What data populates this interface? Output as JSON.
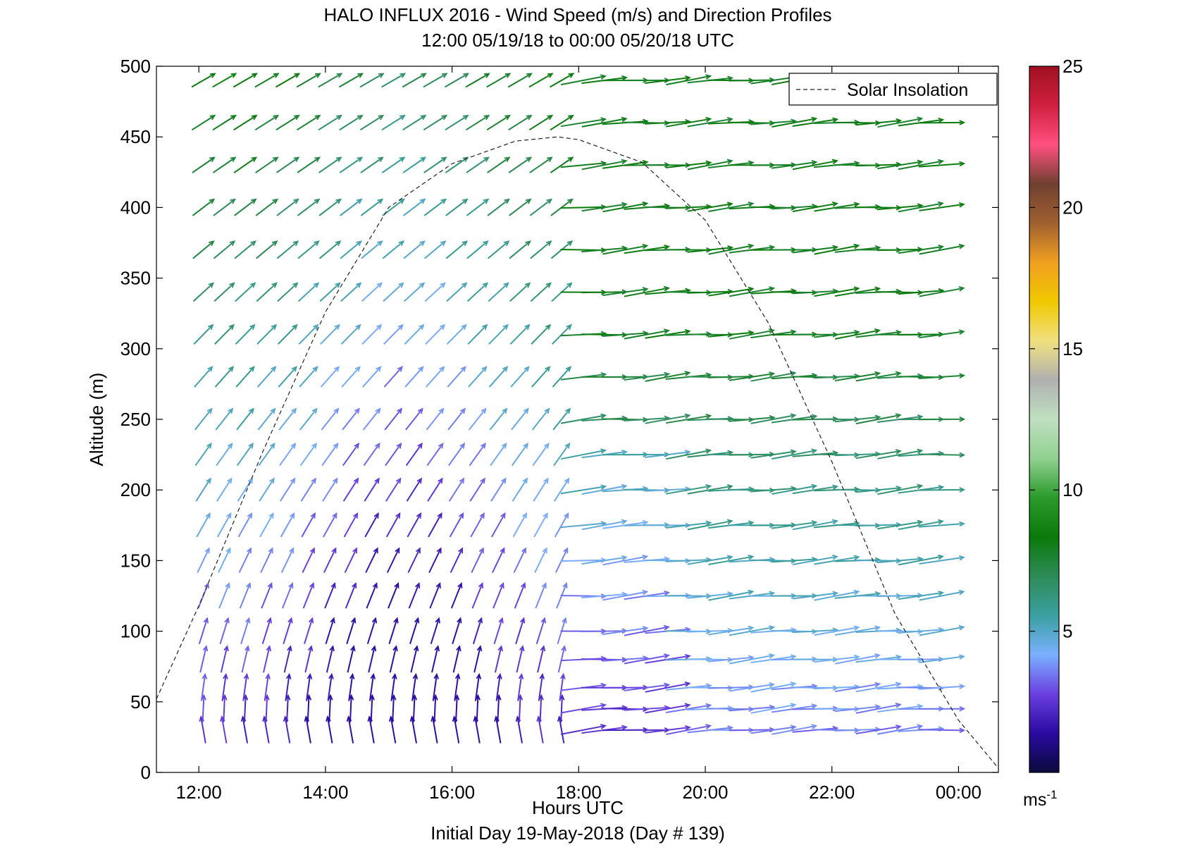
{
  "chart_data": {
    "type": "quiver",
    "title": "HALO INFLUX 2016 - Wind Speed (m/s) and Direction Profiles",
    "subtitle": "12:00 05/19/18 to 00:00 05/20/18  UTC",
    "xlabel": "Hours UTC",
    "xlabel2": "Initial Day 19-May-2018 (Day # 139)",
    "ylabel": "Altitude (m)",
    "x_ticks": [
      "12:00",
      "14:00",
      "16:00",
      "18:00",
      "20:00",
      "22:00",
      "00:00"
    ],
    "x_tick_hours": [
      12,
      14,
      16,
      18,
      20,
      22,
      24
    ],
    "xlim_hours": [
      11.33,
      24.63
    ],
    "ylim": [
      0,
      500
    ],
    "y_ticks": [
      0,
      50,
      100,
      150,
      200,
      250,
      300,
      350,
      400,
      450,
      500
    ],
    "grid": false,
    "legend": {
      "position": "top-right",
      "entries": [
        "Solar Insolation"
      ]
    },
    "colorbar": {
      "range": [
        0,
        25
      ],
      "ticks": [
        5,
        10,
        15,
        20,
        25
      ],
      "unit_label": "ms",
      "unit_exponent": "-1",
      "stops": [
        "#0a0a3c",
        "#2a0aa0",
        "#6a40e0",
        "#7ab0ff",
        "#3aa0a0",
        "#2e8b57",
        "#0a7a0a",
        "#2a9a2a",
        "#90d090",
        "#c0e0c0",
        "#b0b0b0",
        "#f0e080",
        "#f0c800",
        "#f0a020",
        "#a06030",
        "#704030",
        "#ff5080",
        "#d02040",
        "#a01020"
      ]
    },
    "solar_insolation": {
      "style": "dashed",
      "hours": [
        11.33,
        12,
        13,
        14,
        15,
        16,
        17,
        17.67,
        18,
        19,
        20,
        21,
        22,
        23,
        24,
        24.63
      ],
      "altitude": [
        52,
        118,
        226,
        326,
        400,
        431,
        447,
        450,
        448,
        432,
        391,
        318,
        220,
        112,
        37,
        3
      ]
    },
    "wind_profiles": {
      "altitudes": [
        30,
        45,
        60,
        80,
        100,
        125,
        150,
        175,
        200,
        225,
        250,
        280,
        310,
        340,
        370,
        400,
        430,
        460,
        490
      ],
      "hours": [
        12.07,
        12.4,
        12.73,
        13.07,
        13.4,
        13.73,
        14.07,
        14.4,
        14.73,
        15.07,
        15.4,
        15.73,
        16.07,
        16.4,
        16.73,
        17.07,
        17.4,
        17.73,
        18.07,
        18.4,
        18.73,
        19.07,
        19.4,
        19.73,
        20.07,
        20.4,
        20.73,
        21.07,
        21.4,
        21.73,
        22.07,
        22.4,
        22.73,
        23.07,
        23.4,
        23.73
      ],
      "transition_hour": 18.0,
      "early_dir_surface_deg": 170,
      "early_dir_top_deg": 240,
      "late_dir_deg": 265,
      "early_speed_surface": 2.5,
      "early_speed_top": 8.5,
      "late_speed_surface": 3.5,
      "late_speed_top": 8.0
    }
  }
}
